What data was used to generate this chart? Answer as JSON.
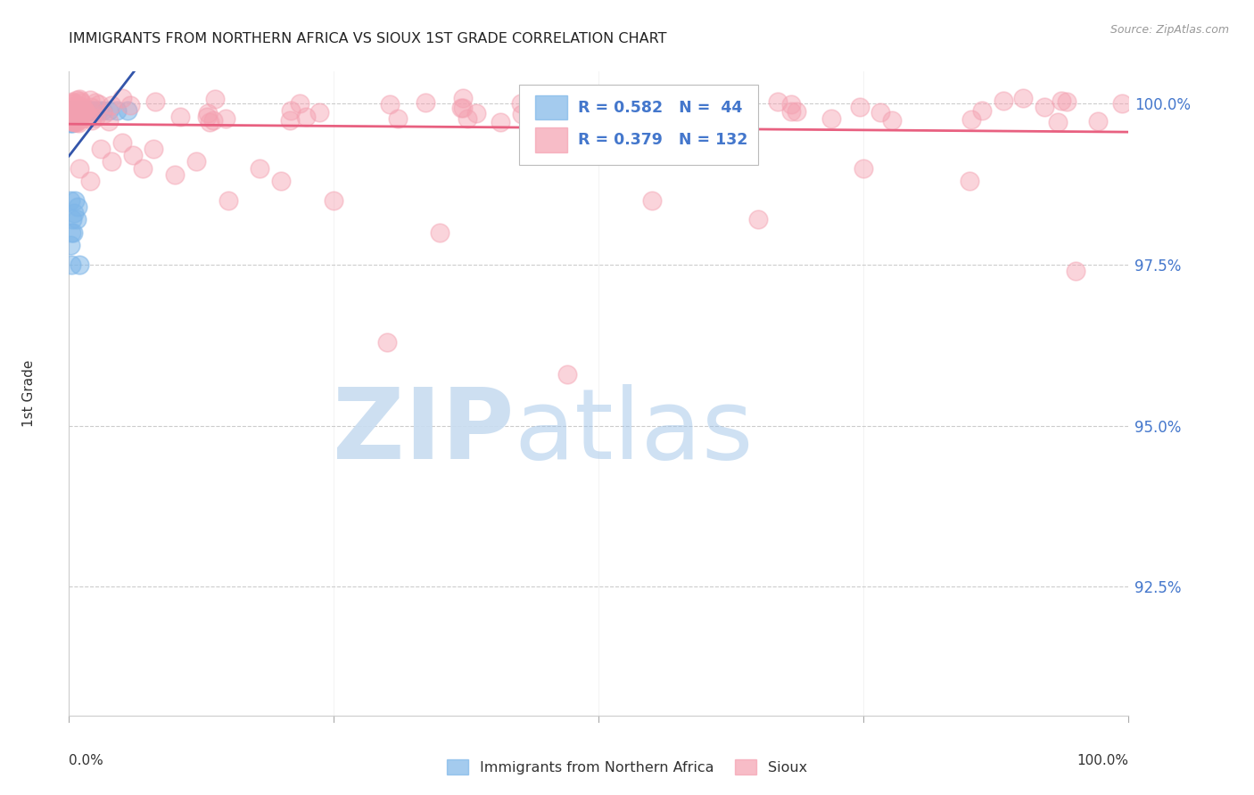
{
  "title": "IMMIGRANTS FROM NORTHERN AFRICA VS SIOUX 1ST GRADE CORRELATION CHART",
  "source": "Source: ZipAtlas.com",
  "ylabel": "1st Grade",
  "legend_label1": "Immigrants from Northern Africa",
  "legend_label2": "Sioux",
  "R1": 0.582,
  "N1": 44,
  "R2": 0.379,
  "N2": 132,
  "color_blue": "#7EB6E8",
  "color_pink": "#F4A0B0",
  "color_blue_line": "#3355AA",
  "color_pink_line": "#E86080",
  "color_blue_text": "#4477CC",
  "color_grid": "#CCCCCC",
  "xlim": [
    0.0,
    1.0
  ],
  "ylim": [
    0.905,
    1.005
  ],
  "yticks": [
    1.0,
    0.975,
    0.95,
    0.925
  ],
  "ytick_labels": [
    "100.0%",
    "97.5%",
    "95.0%",
    "92.5%"
  ],
  "xtick_labels_bottom": [
    "0.0%",
    "100.0%"
  ]
}
